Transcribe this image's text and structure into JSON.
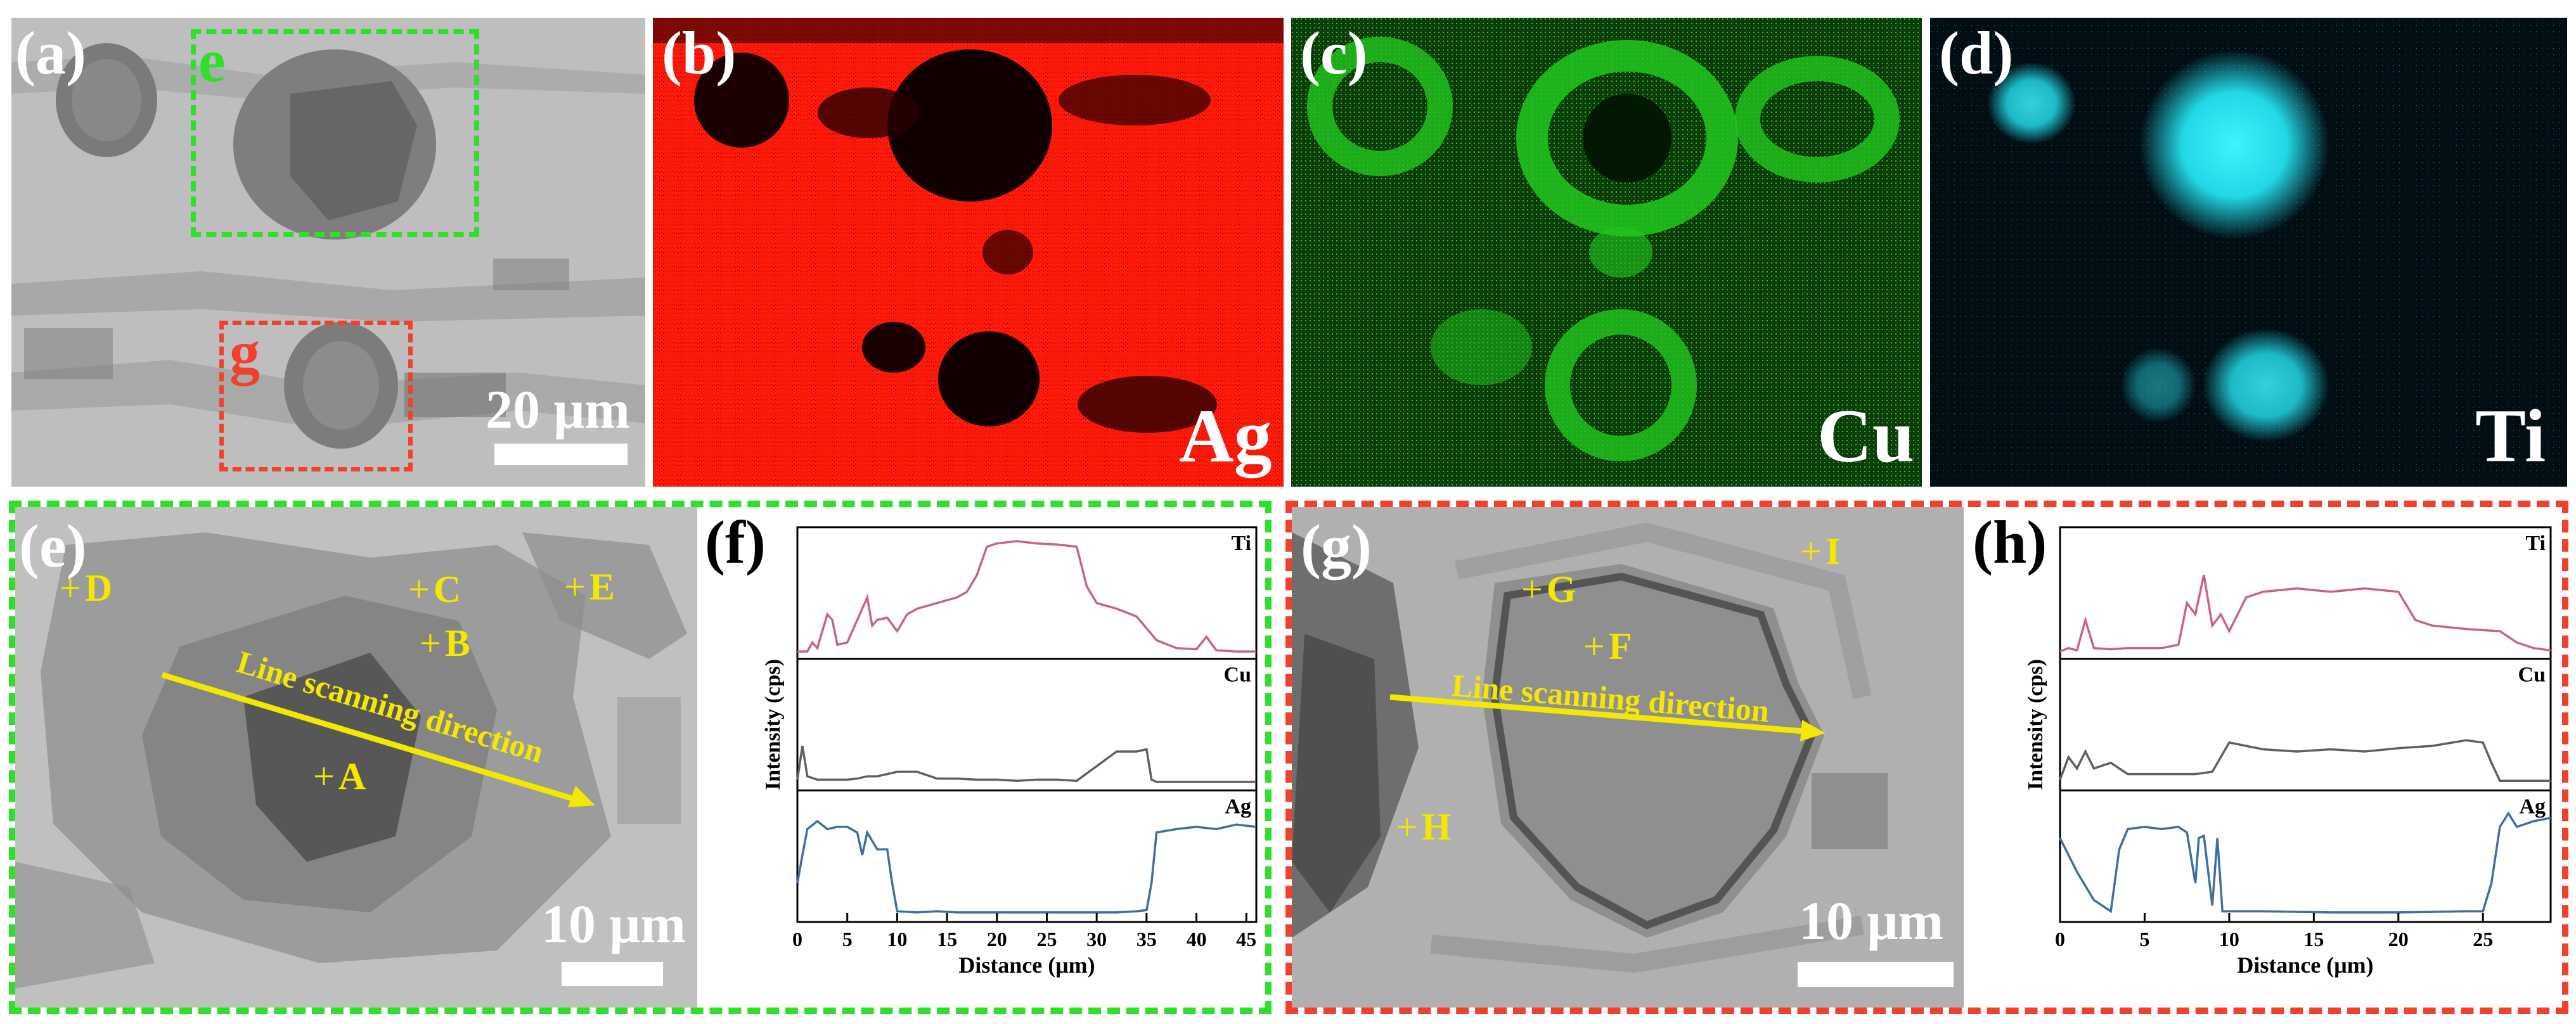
{
  "panels": {
    "a": {
      "label": "(a)",
      "box_e": "e",
      "box_g": "g",
      "scale": "20 μm"
    },
    "b": {
      "label": "(b)",
      "element": "Ag",
      "color": "#ff1a0a"
    },
    "c": {
      "label": "(c)",
      "element": "Cu",
      "color": "#22c81e"
    },
    "d": {
      "label": "(d)",
      "element": "Ti",
      "color": "#23d7e6"
    },
    "e": {
      "label": "(e)",
      "scale": "10 μm",
      "line_text": "Line scanning direction",
      "points": {
        "A": "A",
        "B": "B",
        "C": "C",
        "D": "D",
        "E": "E"
      }
    },
    "f": {
      "label": "(f)"
    },
    "g": {
      "label": "(g)",
      "scale": "10 μm",
      "line_text": "Line scanning direction",
      "points": {
        "F": "F",
        "G": "G",
        "H": "H",
        "I": "I"
      }
    },
    "h": {
      "label": "(h)"
    }
  },
  "colors": {
    "green_box": "#2ee02a",
    "red_box": "#f0412c",
    "yellow": "#f5e800",
    "ti_line": "#c8628a",
    "cu_line": "#606060",
    "ag_line": "#3f6fa0"
  },
  "chart_data": [
    {
      "type": "line",
      "panel": "(f)",
      "xlabel": "Distance (μm)",
      "ylabel": "Intensity (cps)",
      "xlim": [
        0,
        46
      ],
      "xticks": [
        0,
        5,
        10,
        15,
        20,
        25,
        30,
        35,
        40,
        45
      ],
      "series": [
        {
          "name": "Ti",
          "x": [
            0,
            1,
            1.5,
            2,
            3,
            3.5,
            4,
            5,
            6,
            7,
            7.5,
            8,
            9,
            10,
            11,
            12,
            14,
            16,
            17,
            18,
            19,
            20,
            22,
            24,
            26,
            28,
            29,
            30,
            32,
            34,
            36,
            38,
            40,
            41,
            42,
            44,
            46
          ],
          "values": [
            0.02,
            0.02,
            0.1,
            0.05,
            0.35,
            0.3,
            0.08,
            0.1,
            0.3,
            0.5,
            0.25,
            0.3,
            0.32,
            0.2,
            0.35,
            0.4,
            0.45,
            0.5,
            0.55,
            0.7,
            0.95,
            0.98,
            1.0,
            0.98,
            0.97,
            0.95,
            0.6,
            0.45,
            0.4,
            0.33,
            0.12,
            0.05,
            0.04,
            0.15,
            0.03,
            0.02,
            0.02
          ]
        },
        {
          "name": "Cu",
          "x": [
            0,
            0.5,
            1,
            2,
            5,
            6,
            7,
            8,
            9,
            10,
            12,
            14,
            16,
            18,
            20,
            22,
            24,
            26,
            28,
            32,
            34,
            35,
            35.5,
            36,
            38,
            40,
            42,
            44,
            46
          ],
          "values": [
            0.05,
            0.35,
            0.08,
            0.05,
            0.05,
            0.06,
            0.08,
            0.08,
            0.1,
            0.12,
            0.12,
            0.06,
            0.06,
            0.05,
            0.05,
            0.04,
            0.05,
            0.05,
            0.04,
            0.3,
            0.3,
            0.32,
            0.05,
            0.03,
            0.03,
            0.03,
            0.03,
            0.03,
            0.03
          ]
        },
        {
          "name": "Ag",
          "x": [
            0,
            0.5,
            1,
            2,
            3,
            4,
            5,
            6,
            6.5,
            7,
            8,
            9,
            9.5,
            10,
            12,
            14,
            16,
            20,
            24,
            28,
            30,
            32,
            34,
            35,
            35.5,
            36,
            38,
            40,
            42,
            44,
            46
          ],
          "values": [
            0.3,
            0.55,
            0.78,
            0.85,
            0.78,
            0.8,
            0.8,
            0.75,
            0.55,
            0.75,
            0.6,
            0.6,
            0.3,
            0.05,
            0.04,
            0.05,
            0.04,
            0.04,
            0.04,
            0.04,
            0.04,
            0.04,
            0.05,
            0.06,
            0.3,
            0.75,
            0.78,
            0.8,
            0.78,
            0.82,
            0.8
          ]
        }
      ]
    },
    {
      "type": "line",
      "panel": "(h)",
      "xlabel": "Distance (μm)",
      "ylabel": "Intensity (cps)",
      "xlim": [
        0,
        29
      ],
      "xticks": [
        0,
        5,
        10,
        15,
        20,
        25
      ],
      "series": [
        {
          "name": "Ti",
          "x": [
            0,
            0.5,
            1,
            1.5,
            2,
            3,
            4,
            5,
            6,
            7,
            7.5,
            8,
            8.5,
            9,
            9.5,
            10,
            11,
            12,
            14,
            16,
            18,
            20,
            21,
            22,
            24,
            26,
            27,
            28,
            29
          ],
          "values": [
            0.02,
            0.05,
            0.03,
            0.3,
            0.05,
            0.04,
            0.05,
            0.05,
            0.05,
            0.08,
            0.45,
            0.35,
            0.7,
            0.25,
            0.35,
            0.2,
            0.5,
            0.55,
            0.58,
            0.55,
            0.58,
            0.55,
            0.3,
            0.25,
            0.22,
            0.2,
            0.1,
            0.05,
            0.03
          ]
        },
        {
          "name": "Cu",
          "x": [
            0,
            0.5,
            1,
            1.5,
            2,
            3,
            4,
            6,
            8,
            9,
            10,
            12,
            14,
            16,
            18,
            20,
            22,
            24,
            25,
            25.5,
            26,
            27,
            28,
            29
          ],
          "values": [
            0.05,
            0.25,
            0.15,
            0.3,
            0.15,
            0.2,
            0.1,
            0.1,
            0.1,
            0.12,
            0.38,
            0.32,
            0.3,
            0.32,
            0.3,
            0.33,
            0.35,
            0.4,
            0.38,
            0.2,
            0.04,
            0.04,
            0.04,
            0.04
          ]
        },
        {
          "name": "Ag",
          "x": [
            0,
            1,
            2,
            3,
            3.5,
            4,
            5,
            6,
            7,
            7.5,
            8,
            8.2,
            8.5,
            9,
            9.3,
            9.6,
            10,
            12,
            16,
            20,
            24,
            25,
            25.5,
            26,
            26.5,
            27,
            28,
            29
          ],
          "values": [
            0.7,
            0.4,
            0.15,
            0.05,
            0.6,
            0.78,
            0.8,
            0.78,
            0.8,
            0.75,
            0.3,
            0.7,
            0.72,
            0.1,
            0.7,
            0.05,
            0.05,
            0.05,
            0.04,
            0.04,
            0.05,
            0.05,
            0.3,
            0.8,
            0.92,
            0.8,
            0.85,
            0.88
          ]
        }
      ]
    }
  ]
}
